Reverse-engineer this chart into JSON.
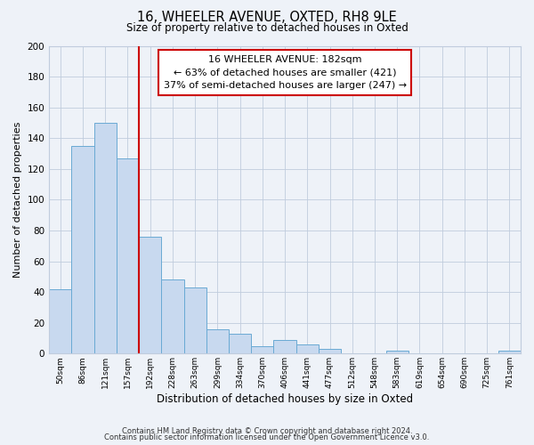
{
  "title_line1": "16, WHEELER AVENUE, OXTED, RH8 9LE",
  "title_line2": "Size of property relative to detached houses in Oxted",
  "xlabel": "Distribution of detached houses by size in Oxted",
  "ylabel": "Number of detached properties",
  "bin_labels": [
    "50sqm",
    "86sqm",
    "121sqm",
    "157sqm",
    "192sqm",
    "228sqm",
    "263sqm",
    "299sqm",
    "334sqm",
    "370sqm",
    "406sqm",
    "441sqm",
    "477sqm",
    "512sqm",
    "548sqm",
    "583sqm",
    "619sqm",
    "654sqm",
    "690sqm",
    "725sqm",
    "761sqm"
  ],
  "bar_heights": [
    42,
    135,
    150,
    127,
    76,
    48,
    43,
    16,
    13,
    5,
    9,
    6,
    3,
    0,
    0,
    2,
    0,
    0,
    0,
    0,
    2
  ],
  "bar_color": "#c8d9ef",
  "bar_edge_color": "#6aaad4",
  "vline_x": 4,
  "vline_color": "#cc0000",
  "annotation_text": "16 WHEELER AVENUE: 182sqm\n← 63% of detached houses are smaller (421)\n37% of semi-detached houses are larger (247) →",
  "annotation_box_color": "white",
  "annotation_box_edge": "#cc0000",
  "ylim": [
    0,
    200
  ],
  "yticks": [
    0,
    20,
    40,
    60,
    80,
    100,
    120,
    140,
    160,
    180,
    200
  ],
  "footer_line1": "Contains HM Land Registry data © Crown copyright and database right 2024.",
  "footer_line2": "Contains public sector information licensed under the Open Government Licence v3.0.",
  "bg_color": "#eef2f8",
  "plot_bg_color": "#eef2f8",
  "grid_color": "#c0ccdd"
}
